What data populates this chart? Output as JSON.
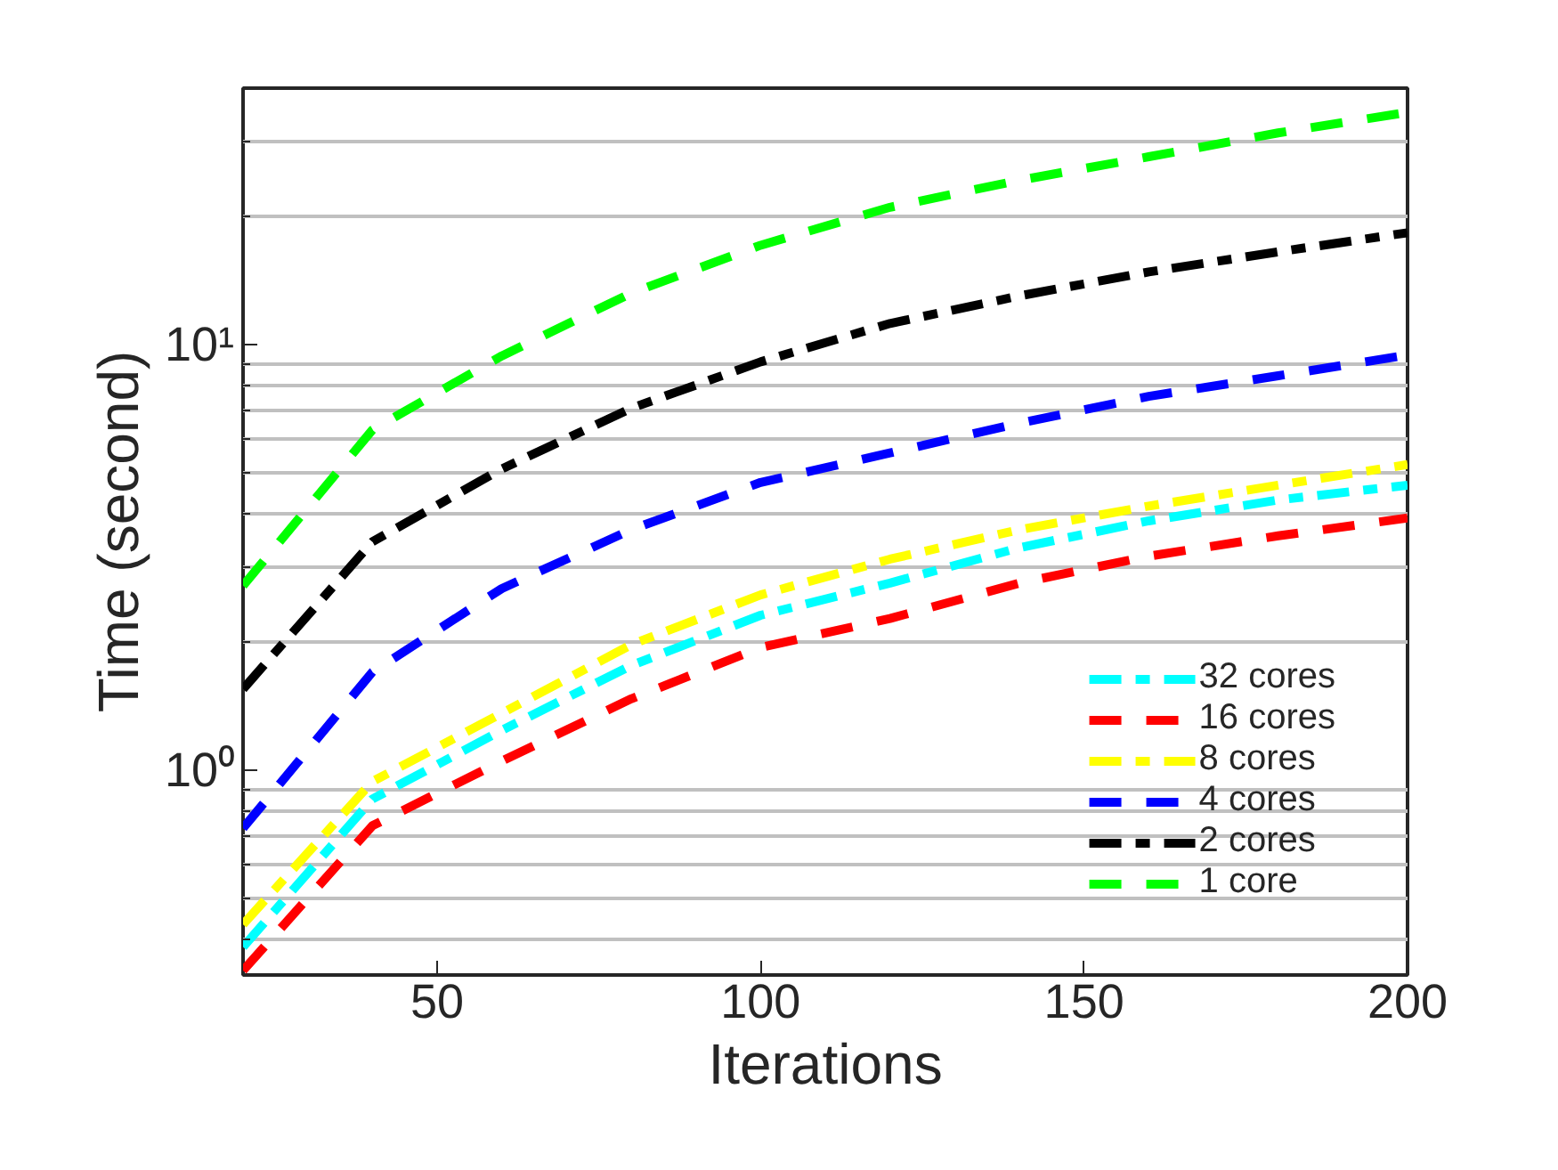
{
  "chart_data": {
    "type": "line",
    "xlabel": "Iterations",
    "ylabel": "Time (second)",
    "x": [
      20,
      40,
      60,
      80,
      100,
      120,
      140,
      160,
      180,
      200
    ],
    "xlim": [
      20,
      200
    ],
    "xticks": [
      50,
      100,
      150,
      200
    ],
    "ylim": [
      0.33,
      40
    ],
    "yticks": [
      {
        "value": 1,
        "label": "10⁰"
      },
      {
        "value": 10,
        "label": "10¹"
      }
    ],
    "log": "y",
    "grid": "y",
    "legend": "bottom right",
    "series": [
      {
        "name": "32 cores",
        "color": "#00ffff",
        "line_style": "dashdot",
        "values": [
          0.384,
          0.855,
          1.24,
          1.76,
          2.31,
          2.75,
          3.33,
          3.85,
          4.31,
          4.67
        ]
      },
      {
        "name": "16 cores",
        "color": "#ff0000",
        "line_style": "dashed",
        "values": [
          0.338,
          0.74,
          1.05,
          1.47,
          1.94,
          2.27,
          2.75,
          3.18,
          3.55,
          3.91
        ]
      },
      {
        "name": "8 cores",
        "color": "#ffff00",
        "line_style": "dashdot",
        "values": [
          0.434,
          0.94,
          1.36,
          1.97,
          2.58,
          3.13,
          3.67,
          4.17,
          4.67,
          5.22
        ]
      },
      {
        "name": "4 cores",
        "color": "#0000ff",
        "line_style": "dashed",
        "values": [
          0.73,
          1.7,
          2.67,
          3.67,
          4.74,
          5.56,
          6.53,
          7.55,
          8.44,
          9.44
        ]
      },
      {
        "name": "2 cores",
        "color": "#000000",
        "line_style": "dashdot",
        "values": [
          1.55,
          3.44,
          5.1,
          7.08,
          9.1,
          11.2,
          13.0,
          14.8,
          16.5,
          18.3
        ]
      },
      {
        "name": "1 core",
        "color": "#00ff00",
        "line_style": "dashed",
        "values": [
          2.71,
          6.3,
          9.4,
          13.2,
          17.1,
          21.0,
          24.3,
          27.6,
          31.4,
          35.1
        ]
      }
    ]
  }
}
